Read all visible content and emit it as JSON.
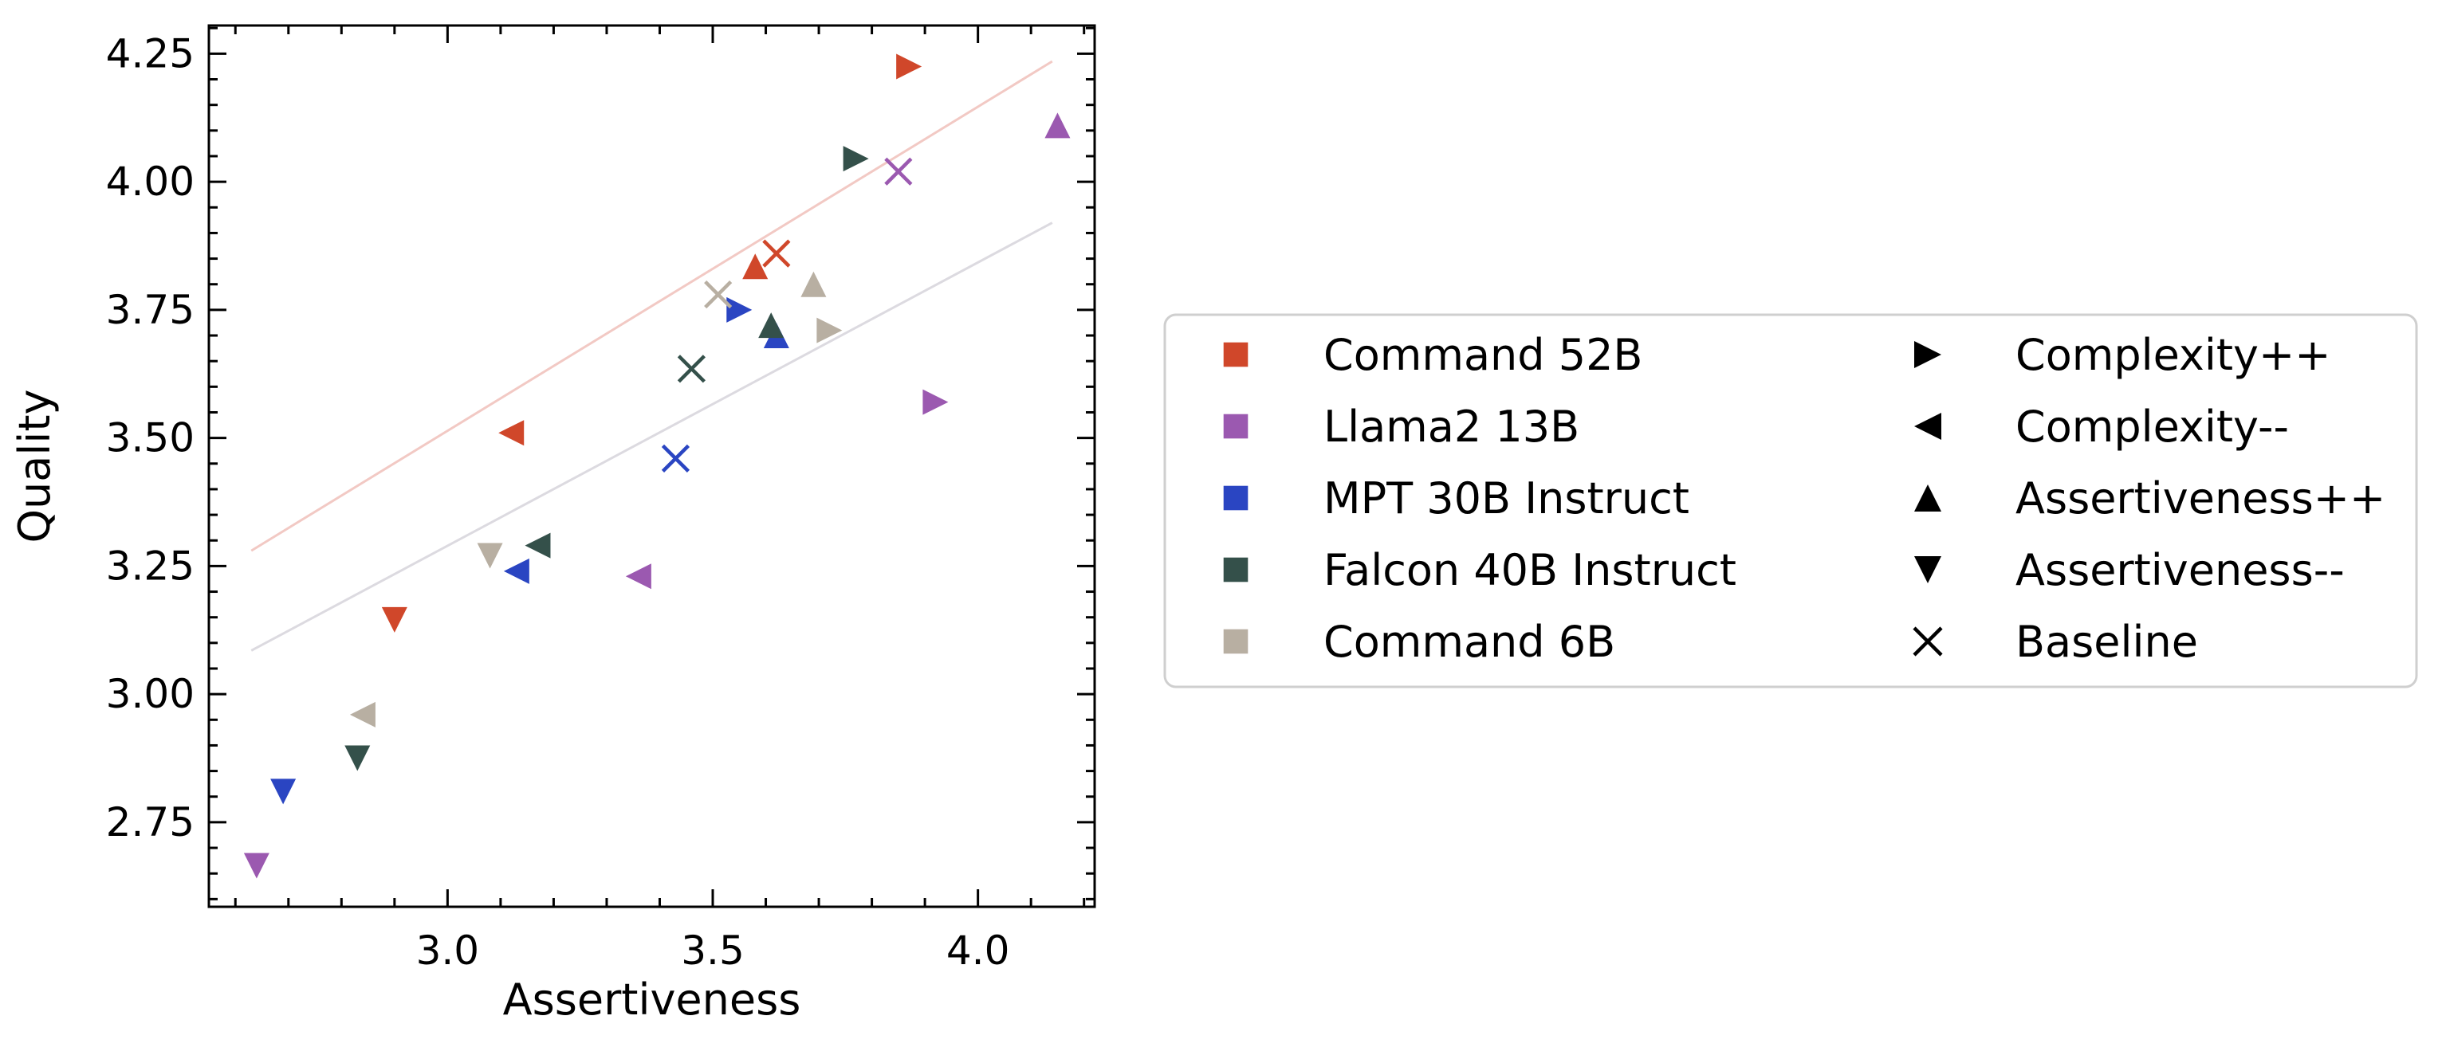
{
  "chart_data": {
    "type": "scatter",
    "xlabel": "Assertiveness",
    "ylabel": "Quality",
    "xlim": [
      2.55,
      4.22
    ],
    "ylim": [
      2.585,
      4.305
    ],
    "xticks": [
      "3.0",
      "3.5",
      "4.0"
    ],
    "xtick_values": [
      3.0,
      3.5,
      4.0
    ],
    "yticks": [
      "2.75",
      "3.00",
      "3.25",
      "3.50",
      "3.75",
      "4.00",
      "4.25"
    ],
    "ytick_values": [
      2.75,
      3.0,
      3.25,
      3.5,
      3.75,
      4.0,
      4.25
    ],
    "grid": false,
    "legend_placement": "center-right, outside",
    "models": [
      {
        "name": "Command 52B",
        "color": "#D0472A"
      },
      {
        "name": "Llama2 13B",
        "color": "#9B59B0"
      },
      {
        "name": "MPT 30B Instruct",
        "color": "#2A45C2"
      },
      {
        "name": "Falcon 40B Instruct",
        "color": "#34504A"
      },
      {
        "name": "Command 6B",
        "color": "#B8AFA2"
      }
    ],
    "markers": [
      {
        "name": "Complexity++",
        "shape": "triangle-right"
      },
      {
        "name": "Complexity--",
        "shape": "triangle-left"
      },
      {
        "name": "Assertiveness++",
        "shape": "triangle-up"
      },
      {
        "name": "Assertiveness--",
        "shape": "triangle-down"
      },
      {
        "name": "Baseline",
        "shape": "x"
      }
    ],
    "points": [
      {
        "model": 0,
        "marker": 0,
        "x": 3.87,
        "y": 4.225
      },
      {
        "model": 0,
        "marker": 1,
        "x": 3.12,
        "y": 3.51
      },
      {
        "model": 0,
        "marker": 2,
        "x": 3.58,
        "y": 3.835
      },
      {
        "model": 0,
        "marker": 3,
        "x": 2.9,
        "y": 3.145
      },
      {
        "model": 0,
        "marker": 4,
        "x": 3.62,
        "y": 3.86
      },
      {
        "model": 1,
        "marker": 0,
        "x": 3.92,
        "y": 3.57
      },
      {
        "model": 1,
        "marker": 1,
        "x": 3.36,
        "y": 3.23
      },
      {
        "model": 1,
        "marker": 2,
        "x": 4.15,
        "y": 4.11
      },
      {
        "model": 1,
        "marker": 3,
        "x": 2.64,
        "y": 2.665
      },
      {
        "model": 1,
        "marker": 4,
        "x": 3.85,
        "y": 4.02
      },
      {
        "model": 2,
        "marker": 0,
        "x": 3.55,
        "y": 3.75
      },
      {
        "model": 2,
        "marker": 1,
        "x": 3.13,
        "y": 3.24
      },
      {
        "model": 2,
        "marker": 2,
        "x": 3.62,
        "y": 3.7
      },
      {
        "model": 2,
        "marker": 3,
        "x": 2.69,
        "y": 2.81
      },
      {
        "model": 2,
        "marker": 4,
        "x": 3.43,
        "y": 3.46
      },
      {
        "model": 3,
        "marker": 0,
        "x": 3.77,
        "y": 4.045
      },
      {
        "model": 3,
        "marker": 1,
        "x": 3.17,
        "y": 3.29
      },
      {
        "model": 3,
        "marker": 2,
        "x": 3.61,
        "y": 3.72
      },
      {
        "model": 3,
        "marker": 3,
        "x": 2.83,
        "y": 2.875
      },
      {
        "model": 3,
        "marker": 4,
        "x": 3.46,
        "y": 3.635
      },
      {
        "model": 4,
        "marker": 0,
        "x": 3.72,
        "y": 3.71
      },
      {
        "model": 4,
        "marker": 1,
        "x": 2.84,
        "y": 2.96
      },
      {
        "model": 4,
        "marker": 2,
        "x": 3.69,
        "y": 3.8
      },
      {
        "model": 4,
        "marker": 3,
        "x": 3.08,
        "y": 3.27
      },
      {
        "model": 4,
        "marker": 4,
        "x": 3.51,
        "y": 3.78
      }
    ],
    "trend_lines": [
      {
        "color": "#F2C9C4",
        "x": [
          2.63,
          4.14
        ],
        "y": [
          3.28,
          4.235
        ]
      },
      {
        "color": "#DCDAE0",
        "x": [
          2.63,
          4.14
        ],
        "y": [
          3.085,
          3.92
        ]
      }
    ]
  }
}
